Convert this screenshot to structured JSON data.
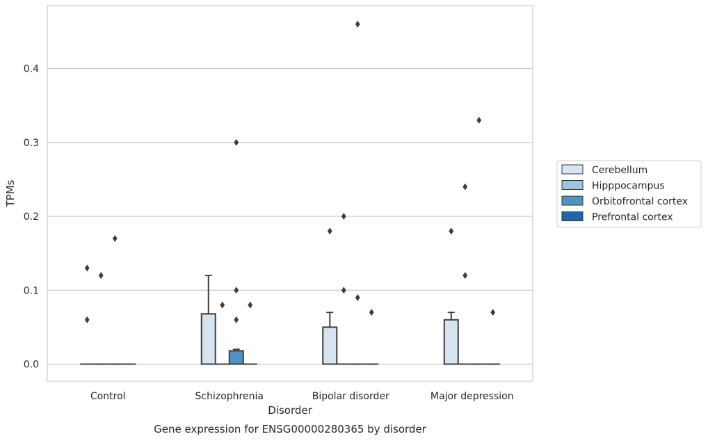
{
  "chart_data": {
    "type": "box",
    "title": "Gene expression for ENSG00000280365 by disorder",
    "xlabel": "Disorder",
    "ylabel": "TPMs",
    "categories": [
      "Control",
      "Schizophrenia",
      "Bipolar disorder",
      "Major depression"
    ],
    "ylim": [
      -0.023,
      0.483
    ],
    "yticks": [
      "0.0",
      "0.1",
      "0.2",
      "0.3",
      "0.4"
    ],
    "ytick_values": [
      0.0,
      0.1,
      0.2,
      0.3,
      0.4
    ],
    "grid": true,
    "legend_position": "right",
    "series": [
      {
        "name": "Cerebellum",
        "color": "#d6e4f2",
        "boxes": [
          {
            "q1": 0,
            "median": 0,
            "q3": 0,
            "whisker_low": 0,
            "whisker_high": 0,
            "outliers": [
              0.06,
              0.13
            ]
          },
          {
            "q1": 0,
            "median": 0,
            "q3": 0.068,
            "whisker_low": 0,
            "whisker_high": 0.12,
            "outliers": []
          },
          {
            "q1": 0,
            "median": 0,
            "q3": 0.05,
            "whisker_low": 0,
            "whisker_high": 0.07,
            "outliers": [
              0.18
            ]
          },
          {
            "q1": 0,
            "median": 0,
            "q3": 0.06,
            "whisker_low": 0,
            "whisker_high": 0.07,
            "outliers": [
              0.18
            ]
          }
        ]
      },
      {
        "name": "Hipppocampus",
        "color": "#9cc5df",
        "boxes": [
          {
            "q1": 0,
            "median": 0,
            "q3": 0,
            "whisker_low": 0,
            "whisker_high": 0,
            "outliers": [
              0.12
            ]
          },
          {
            "q1": 0,
            "median": 0,
            "q3": 0,
            "whisker_low": 0,
            "whisker_high": 0,
            "outliers": [
              0.08
            ]
          },
          {
            "q1": 0,
            "median": 0,
            "q3": 0,
            "whisker_low": 0,
            "whisker_high": 0,
            "outliers": [
              0.1,
              0.2
            ]
          },
          {
            "q1": 0,
            "median": 0,
            "q3": 0,
            "whisker_low": 0,
            "whisker_high": 0,
            "outliers": [
              0.12,
              0.24
            ]
          }
        ]
      },
      {
        "name": "Orbitofrontal cortex",
        "color": "#4f93c3",
        "boxes": [
          {
            "q1": 0,
            "median": 0,
            "q3": 0,
            "whisker_low": 0,
            "whisker_high": 0,
            "outliers": [
              0.17
            ]
          },
          {
            "q1": 0,
            "median": 0,
            "q3": 0.018,
            "whisker_low": 0,
            "whisker_high": 0.02,
            "outliers": [
              0.06,
              0.1,
              0.3
            ]
          },
          {
            "q1": 0,
            "median": 0,
            "q3": 0,
            "whisker_low": 0,
            "whisker_high": 0,
            "outliers": [
              0.09,
              0.46
            ]
          },
          {
            "q1": 0,
            "median": 0,
            "q3": 0,
            "whisker_low": 0,
            "whisker_high": 0,
            "outliers": [
              0.33
            ]
          }
        ]
      },
      {
        "name": "Prefrontal cortex",
        "color": "#2166a8",
        "boxes": [
          {
            "q1": 0,
            "median": 0,
            "q3": 0,
            "whisker_low": 0,
            "whisker_high": 0,
            "outliers": []
          },
          {
            "q1": 0,
            "median": 0,
            "q3": 0,
            "whisker_low": 0,
            "whisker_high": 0,
            "outliers": [
              0.08
            ]
          },
          {
            "q1": 0,
            "median": 0,
            "q3": 0,
            "whisker_low": 0,
            "whisker_high": 0,
            "outliers": [
              0.07
            ]
          },
          {
            "q1": 0,
            "median": 0,
            "q3": 0,
            "whisker_low": 0,
            "whisker_high": 0,
            "outliers": [
              0.07
            ]
          }
        ]
      }
    ]
  }
}
